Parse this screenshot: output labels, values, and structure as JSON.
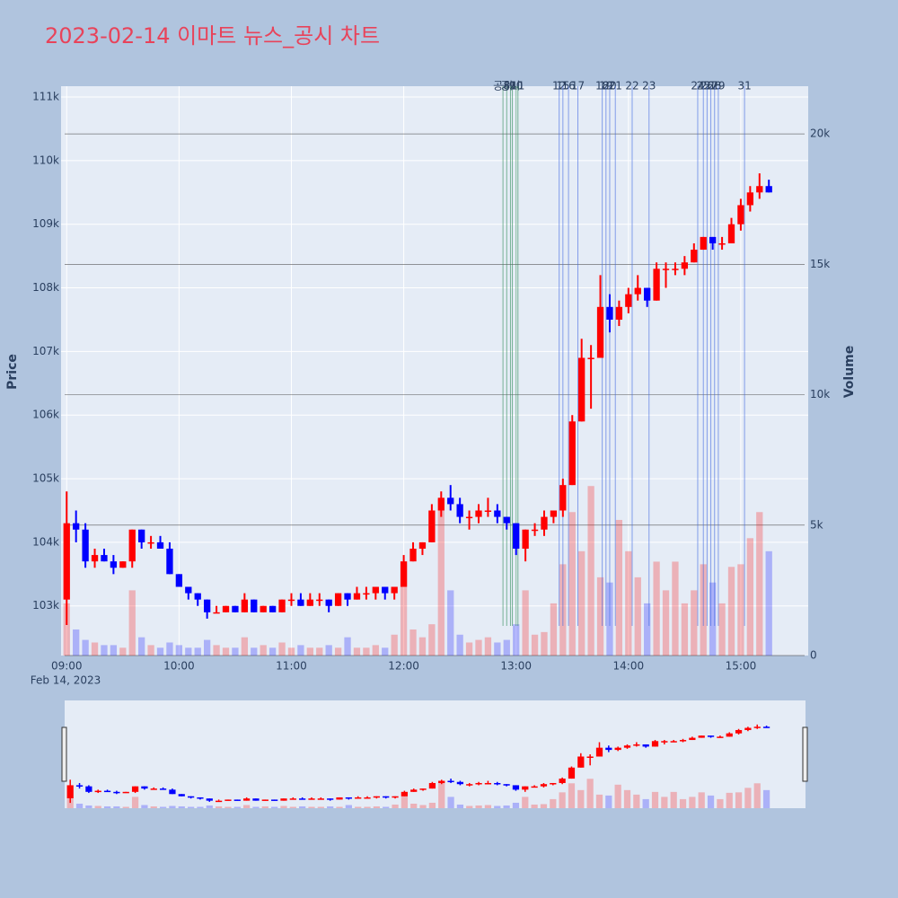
{
  "chart_data": {
    "type": "candlestick",
    "title": "2023-02-14 이마트 뉴스_공시 차트",
    "x": [
      "09:00",
      "09:05",
      "09:10",
      "09:15",
      "09:20",
      "09:25",
      "09:30",
      "09:35",
      "09:40",
      "09:45",
      "09:50",
      "09:55",
      "10:00",
      "10:05",
      "10:10",
      "10:15",
      "10:20",
      "10:25",
      "10:30",
      "10:35",
      "10:40",
      "10:45",
      "10:50",
      "10:55",
      "11:00",
      "11:05",
      "11:10",
      "11:15",
      "11:20",
      "11:25",
      "11:30",
      "11:35",
      "11:40",
      "11:45",
      "11:50",
      "11:55",
      "12:00",
      "12:05",
      "12:10",
      "12:15",
      "12:20",
      "12:25",
      "12:30",
      "12:35",
      "12:40",
      "12:45",
      "12:50",
      "12:55",
      "13:00",
      "13:05",
      "13:10",
      "13:15",
      "13:20",
      "13:25",
      "13:30",
      "13:35",
      "13:40",
      "13:45",
      "13:50",
      "13:55",
      "14:00",
      "14:05",
      "14:10",
      "14:15",
      "14:20",
      "14:25",
      "14:30",
      "14:35",
      "14:40",
      "14:45",
      "14:50",
      "14:55",
      "15:00",
      "15:05",
      "15:10",
      "15:15"
    ],
    "open": [
      103100,
      104300,
      104200,
      103700,
      103800,
      103700,
      103600,
      103700,
      104200,
      104000,
      104000,
      103900,
      103500,
      103300,
      103200,
      103100,
      102900,
      102900,
      103000,
      102900,
      103100,
      102900,
      103000,
      102900,
      103100,
      103100,
      103000,
      103100,
      103100,
      103000,
      103200,
      103100,
      103200,
      103200,
      103300,
      103200,
      103300,
      103700,
      103900,
      104000,
      104500,
      104700,
      104600,
      104400,
      104400,
      104500,
      104500,
      104400,
      104300,
      103900,
      104200,
      104200,
      104400,
      104500,
      104900,
      105900,
      106900,
      106900,
      107700,
      107500,
      107700,
      107900,
      108000,
      107800,
      108300,
      108300,
      108300,
      108400,
      108600,
      108800,
      108700,
      108700,
      109000,
      109300,
      109500,
      109600
    ],
    "high": [
      104800,
      104500,
      104300,
      103900,
      103900,
      103800,
      103700,
      104200,
      104200,
      104100,
      104100,
      104000,
      103500,
      103300,
      103200,
      103100,
      103000,
      103000,
      103000,
      103200,
      103100,
      103000,
      103000,
      103100,
      103200,
      103200,
      103200,
      103200,
      103100,
      103200,
      103200,
      103300,
      103300,
      103300,
      103300,
      103300,
      103800,
      104000,
      104000,
      104600,
      104800,
      104900,
      104700,
      104500,
      104600,
      104700,
      104600,
      104400,
      104300,
      104200,
      104300,
      104500,
      104500,
      105000,
      106000,
      107200,
      107100,
      108200,
      107900,
      107800,
      108000,
      108200,
      108000,
      108400,
      108400,
      108400,
      108500,
      108700,
      108800,
      108800,
      108800,
      109100,
      109400,
      109600,
      109800,
      109700
    ],
    "low": [
      102700,
      104000,
      103600,
      103600,
      103700,
      103500,
      103600,
      103600,
      103900,
      103900,
      103900,
      103500,
      103300,
      103100,
      103000,
      102800,
      102900,
      102900,
      102900,
      102900,
      102900,
      102900,
      102900,
      102900,
      103000,
      103000,
      103000,
      103000,
      102900,
      103000,
      103000,
      103100,
      103100,
      103100,
      103100,
      103100,
      103300,
      103700,
      103800,
      104000,
      104400,
      104500,
      104300,
      104200,
      104300,
      104400,
      104300,
      104200,
      103800,
      103700,
      104100,
      104100,
      104300,
      104400,
      104900,
      105900,
      106100,
      106900,
      107300,
      107400,
      107600,
      107800,
      107700,
      107800,
      108000,
      108200,
      108200,
      108400,
      108600,
      108600,
      108600,
      108700,
      108900,
      109200,
      109400,
      109500
    ],
    "close": [
      104300,
      104200,
      103700,
      103800,
      103700,
      103600,
      103700,
      104200,
      104000,
      104000,
      103900,
      103500,
      103300,
      103200,
      103100,
      102900,
      102900,
      103000,
      102900,
      103100,
      102900,
      103000,
      102900,
      103100,
      103100,
      103000,
      103100,
      103100,
      103000,
      103200,
      103100,
      103200,
      103200,
      103300,
      103200,
      103300,
      103700,
      103900,
      104000,
      104500,
      104700,
      104600,
      104400,
      104400,
      104500,
      104500,
      104400,
      104300,
      103900,
      104200,
      104200,
      104400,
      104500,
      104900,
      105900,
      106900,
      106900,
      107700,
      107500,
      107700,
      107900,
      108000,
      107800,
      108300,
      108300,
      108300,
      108400,
      108600,
      108800,
      108700,
      108700,
      109000,
      109300,
      109500,
      109600,
      109500
    ],
    "up_color": "#ff0000",
    "down_color": "#0000ff",
    "volume": {
      "name": "Volume",
      "axis": "y2",
      "values": [
        2000,
        1000,
        600,
        500,
        400,
        400,
        300,
        2500,
        700,
        400,
        300,
        500,
        400,
        300,
        300,
        600,
        400,
        300,
        300,
        700,
        300,
        400,
        300,
        500,
        300,
        400,
        300,
        300,
        400,
        300,
        700,
        300,
        300,
        400,
        300,
        800,
        3500,
        1000,
        700,
        1200,
        6000,
        2500,
        800,
        500,
        600,
        700,
        500,
        600,
        1200,
        2500,
        800,
        900,
        2000,
        3500,
        5500,
        4000,
        6500,
        3000,
        2800,
        5200,
        4000,
        3000,
        2000,
        3600,
        2500,
        3600,
        2000,
        2500,
        3500,
        2800,
        2000,
        3400,
        3500,
        4500,
        5500,
        4000
      ]
    },
    "news": [
      {
        "x": "12:53",
        "label": "공시",
        "color": "#2e8b57"
      },
      {
        "x": "12:55",
        "label": "8",
        "color": "#2e8b57"
      },
      {
        "x": "12:57",
        "label": "공시",
        "color": "#2e8b57"
      },
      {
        "x": "12:58",
        "label": "9",
        "color": "#2e8b57"
      },
      {
        "x": "13:00",
        "label": "10",
        "color": "#2e8b57"
      },
      {
        "x": "13:01",
        "label": "11",
        "color": "#2e8b57"
      },
      {
        "x": "13:23",
        "label": "12",
        "color": "#4169e1"
      },
      {
        "x": "13:25",
        "label": "15",
        "color": "#4169e1"
      },
      {
        "x": "13:28",
        "label": "16",
        "color": "#4169e1"
      },
      {
        "x": "13:33",
        "label": "17",
        "color": "#4169e1"
      },
      {
        "x": "13:46",
        "label": "18",
        "color": "#4169e1"
      },
      {
        "x": "13:48",
        "label": "19",
        "color": "#4169e1"
      },
      {
        "x": "13:50",
        "label": "20",
        "color": "#4169e1"
      },
      {
        "x": "13:53",
        "label": "21",
        "color": "#4169e1"
      },
      {
        "x": "14:02",
        "label": "22",
        "color": "#4169e1"
      },
      {
        "x": "14:11",
        "label": "23",
        "color": "#4169e1"
      },
      {
        "x": "14:37",
        "label": "24",
        "color": "#4169e1"
      },
      {
        "x": "14:40",
        "label": "25",
        "color": "#4169e1"
      },
      {
        "x": "14:42",
        "label": "26",
        "color": "#4169e1"
      },
      {
        "x": "14:44",
        "label": "27",
        "color": "#4169e1"
      },
      {
        "x": "14:46",
        "label": "28",
        "color": "#4169e1"
      },
      {
        "x": "14:48",
        "label": "29",
        "color": "#4169e1"
      },
      {
        "x": "15:02",
        "label": "31",
        "color": "#4169e1"
      }
    ],
    "xlim": [
      "08:57",
      "15:36"
    ],
    "xticks": [
      "09:00",
      "10:00",
      "11:00",
      "12:00",
      "13:00",
      "14:00",
      "15:00"
    ],
    "x_date_label": "Feb 14, 2023",
    "ylabel": "Price",
    "ylim": [
      102220,
      111170
    ],
    "yticks": [
      {
        "value": 103000,
        "label": "103k"
      },
      {
        "value": 104000,
        "label": "104k"
      },
      {
        "value": 105000,
        "label": "105k"
      },
      {
        "value": 106000,
        "label": "106k"
      },
      {
        "value": 107000,
        "label": "107k"
      },
      {
        "value": 108000,
        "label": "108k"
      },
      {
        "value": 109000,
        "label": "109k"
      },
      {
        "value": 110000,
        "label": "110k"
      },
      {
        "value": 111000,
        "label": "111k"
      }
    ],
    "y2label": "Volume",
    "y2lim": [
      0,
      21830
    ],
    "y2ticks": [
      0,
      {
        "value": 5000,
        "label": "5k"
      },
      {
        "value": 10000,
        "label": "10k"
      },
      {
        "value": 15000,
        "label": "15k"
      },
      {
        "value": 20000,
        "label": "20k"
      }
    ],
    "rangeslider": true
  }
}
